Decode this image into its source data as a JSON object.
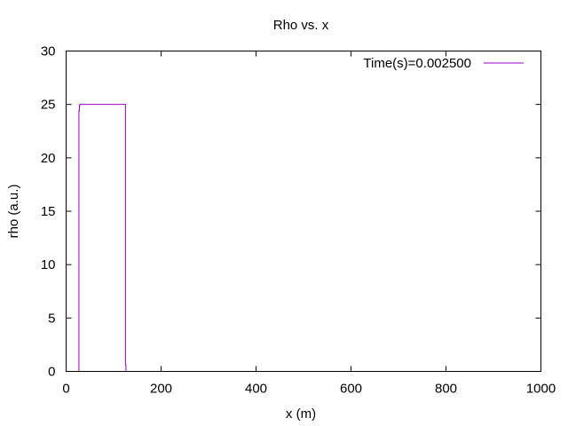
{
  "chart_data": {
    "type": "line",
    "title": "Rho vs. x",
    "xlabel": "x (m)",
    "ylabel": "rho (a.u.)",
    "xlim": [
      0,
      1000
    ],
    "ylim": [
      0,
      30
    ],
    "xticks": [
      0,
      200,
      400,
      600,
      800,
      1000
    ],
    "yticks": [
      0,
      5,
      10,
      15,
      20,
      25,
      30
    ],
    "grid": false,
    "legend_position": "top-right",
    "series": [
      {
        "name": "Time(s)=0.002500",
        "color": "#9400d3",
        "x": [
          27,
          27,
          28,
          28,
          29,
          29,
          125,
          125,
          126,
          126,
          127
        ],
        "y": [
          0,
          24.4,
          24.4,
          24.9,
          24.9,
          25,
          25,
          0.6,
          0.6,
          0,
          0
        ]
      }
    ]
  }
}
